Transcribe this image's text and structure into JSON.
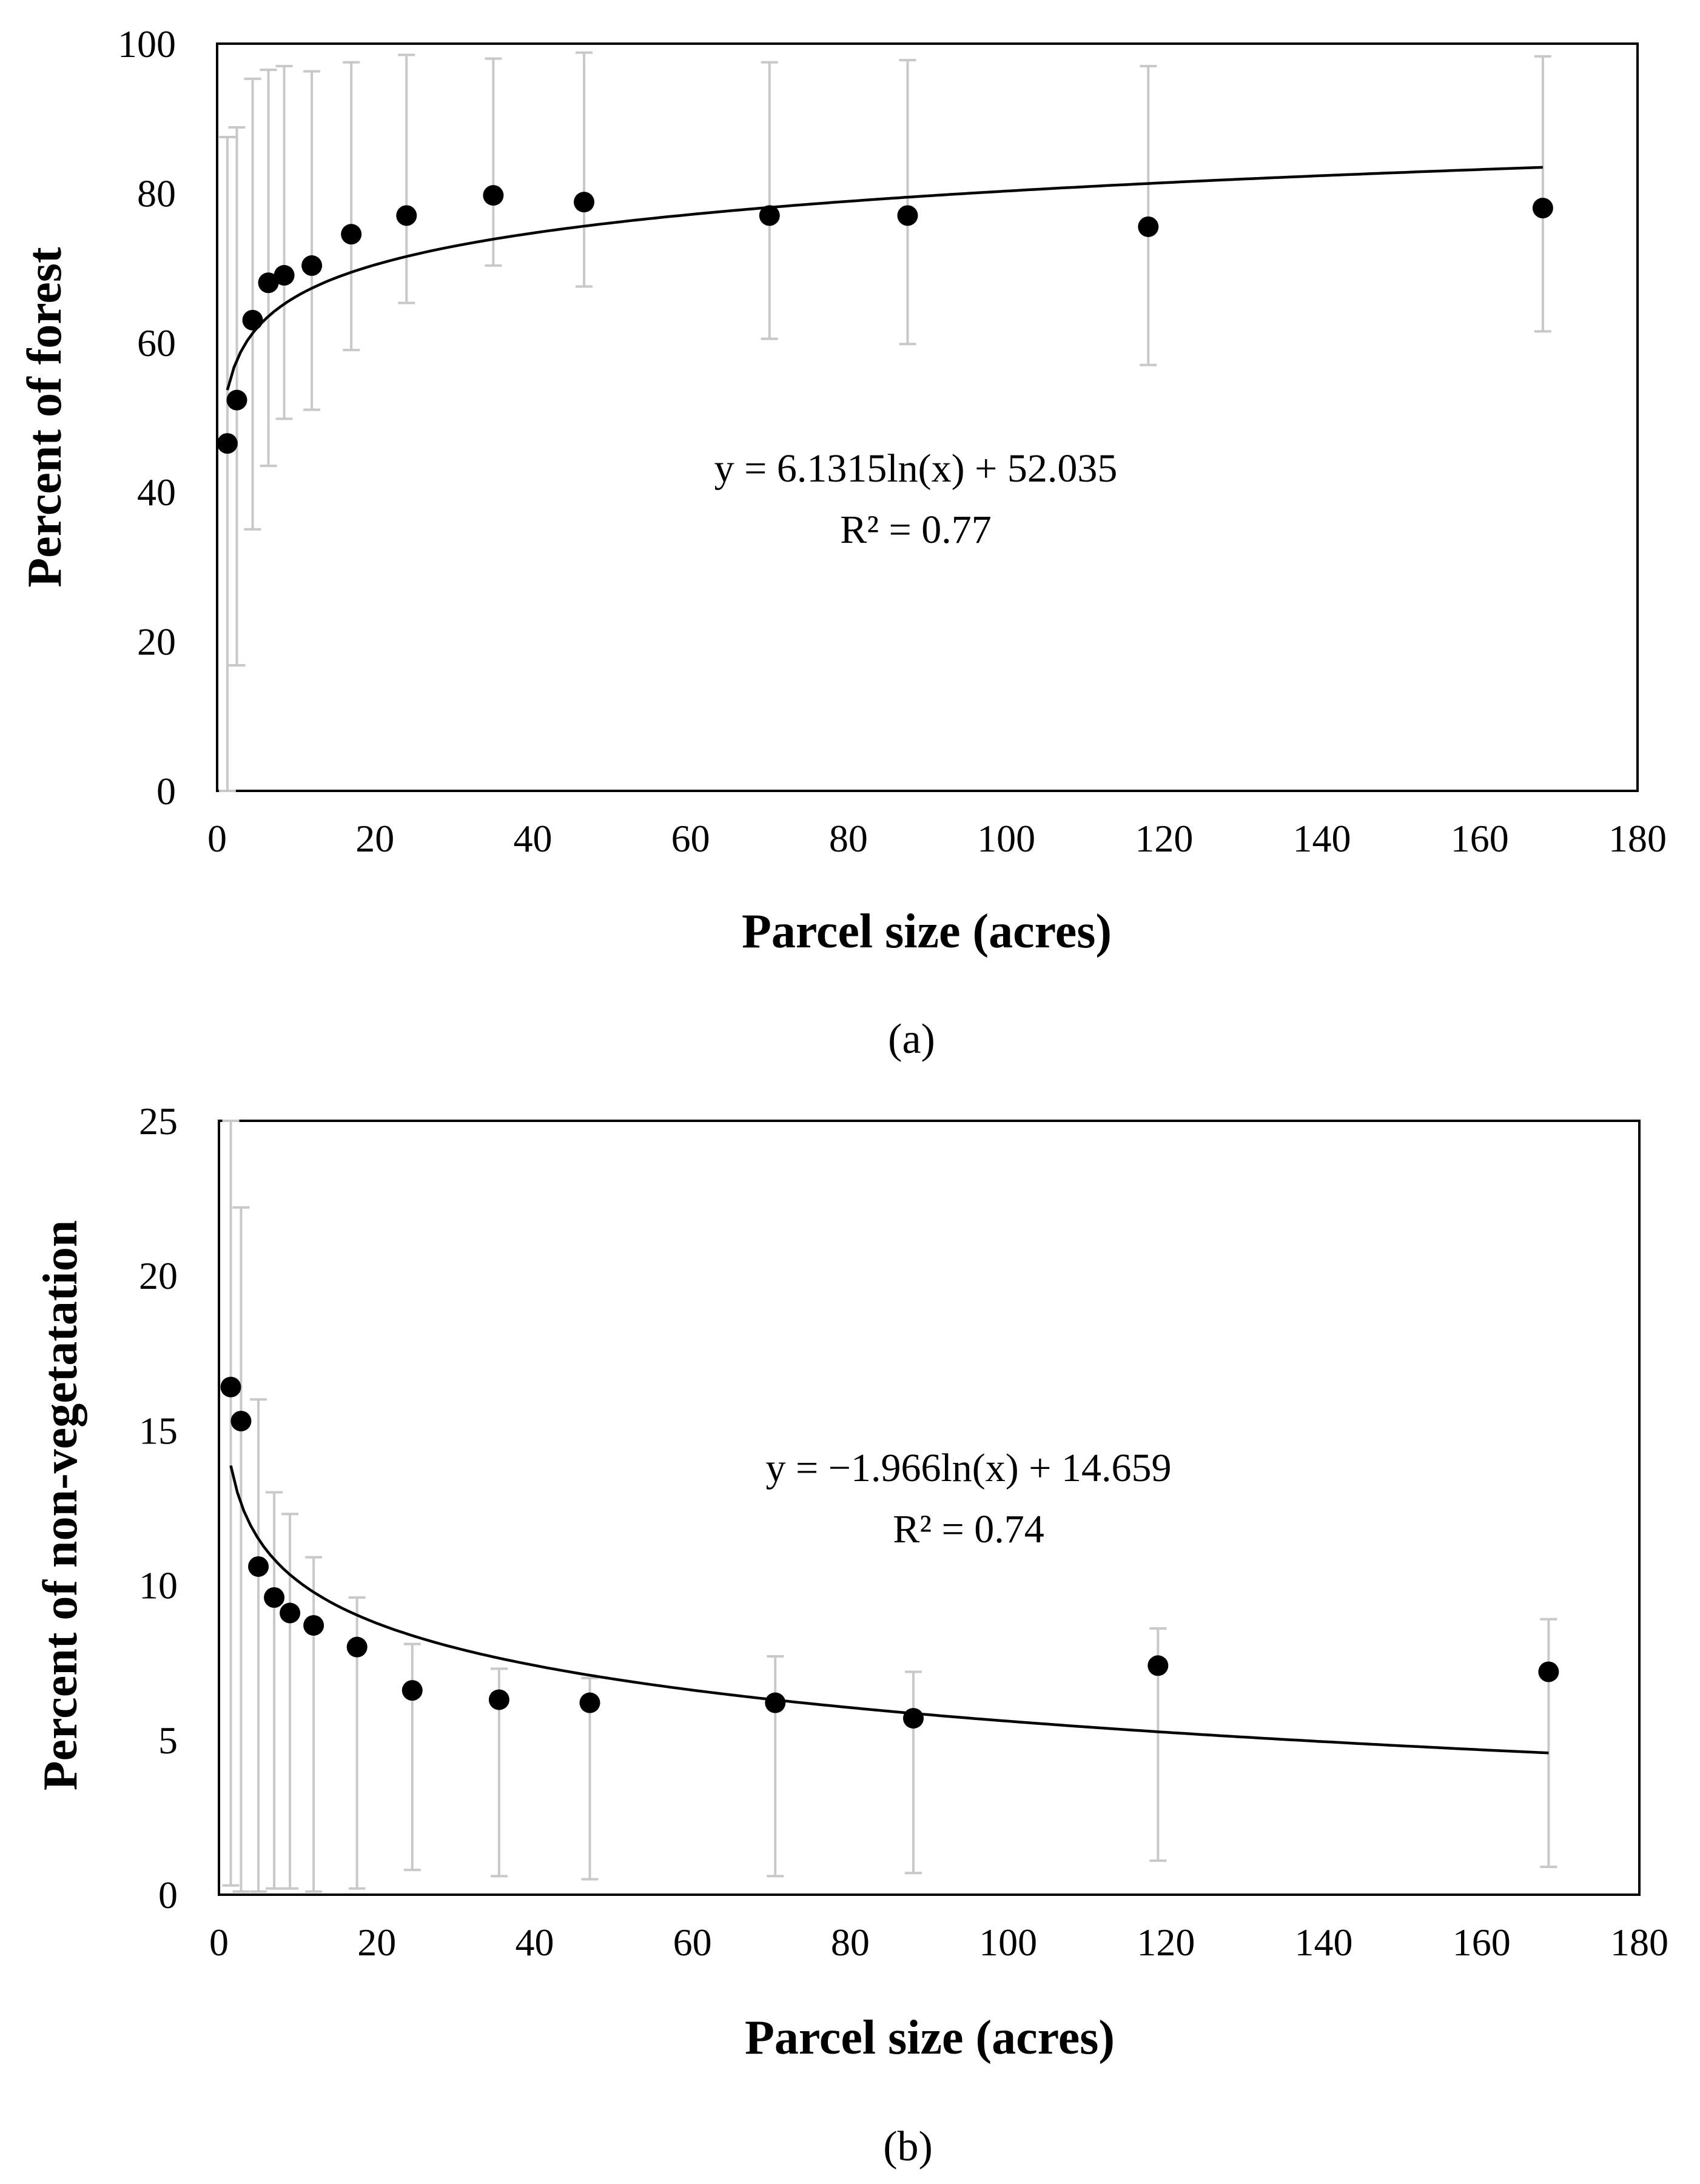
{
  "chart_data": [
    {
      "type": "scatter",
      "panel": "a",
      "caption": "(a)",
      "xlabel": "Parcel size (acres)",
      "ylabel": "Percent of forest",
      "xlim": [
        0,
        180
      ],
      "ylim": [
        0,
        100
      ],
      "xticks": [
        0,
        20,
        40,
        60,
        80,
        100,
        120,
        140,
        160,
        180
      ],
      "yticks": [
        0,
        20,
        40,
        60,
        80,
        100
      ],
      "points": [
        {
          "x": 1.3,
          "y": 46.5,
          "lo": 0,
          "hi": 87.5
        },
        {
          "x": 2.5,
          "y": 52.3,
          "lo": 16.8,
          "hi": 88.8
        },
        {
          "x": 4.5,
          "y": 63.0,
          "lo": 35.0,
          "hi": 95.3
        },
        {
          "x": 6.5,
          "y": 68.0,
          "lo": 43.5,
          "hi": 96.5
        },
        {
          "x": 8.5,
          "y": 69.0,
          "lo": 49.8,
          "hi": 97.0
        },
        {
          "x": 12.0,
          "y": 70.3,
          "lo": 51.0,
          "hi": 96.3
        },
        {
          "x": 17.0,
          "y": 74.5,
          "lo": 59.0,
          "hi": 97.5
        },
        {
          "x": 24.0,
          "y": 77.0,
          "lo": 65.3,
          "hi": 98.5
        },
        {
          "x": 35.0,
          "y": 79.7,
          "lo": 70.3,
          "hi": 98.0
        },
        {
          "x": 46.5,
          "y": 78.8,
          "lo": 67.5,
          "hi": 98.8
        },
        {
          "x": 70.0,
          "y": 77.0,
          "lo": 60.5,
          "hi": 97.5
        },
        {
          "x": 87.5,
          "y": 77.0,
          "lo": 59.8,
          "hi": 97.8
        },
        {
          "x": 118.0,
          "y": 75.5,
          "lo": 57.0,
          "hi": 97.0
        },
        {
          "x": 168.0,
          "y": 78.0,
          "lo": 61.5,
          "hi": 98.3
        }
      ],
      "trendline": {
        "type": "log",
        "a": 6.1315,
        "b": 52.035,
        "x_from": 1.3,
        "x_to": 168
      },
      "equation": "y = 6.1315ln(x) + 52.035",
      "r2": "R² = 0.77"
    },
    {
      "type": "scatter",
      "panel": "b",
      "caption": "(b)",
      "xlabel": "Parcel size (acres)",
      "ylabel": "Percent of non-vegetatation",
      "xlim": [
        0,
        180
      ],
      "ylim": [
        0,
        25
      ],
      "xticks": [
        0,
        20,
        40,
        60,
        80,
        100,
        120,
        140,
        160,
        180
      ],
      "yticks": [
        0,
        5,
        10,
        15,
        20,
        25
      ],
      "points": [
        {
          "x": 1.5,
          "y": 16.4,
          "lo": 0.3,
          "hi": 25.0
        },
        {
          "x": 2.8,
          "y": 15.3,
          "lo": 0.1,
          "hi": 22.2
        },
        {
          "x": 5.0,
          "y": 10.6,
          "lo": 0.1,
          "hi": 16.0
        },
        {
          "x": 7.0,
          "y": 9.6,
          "lo": 0.2,
          "hi": 13.0
        },
        {
          "x": 9.0,
          "y": 9.1,
          "lo": 0.2,
          "hi": 12.3
        },
        {
          "x": 12.0,
          "y": 8.7,
          "lo": 0.1,
          "hi": 10.9
        },
        {
          "x": 17.5,
          "y": 8.0,
          "lo": 0.2,
          "hi": 9.6
        },
        {
          "x": 24.5,
          "y": 6.6,
          "lo": 0.8,
          "hi": 8.1
        },
        {
          "x": 35.5,
          "y": 6.3,
          "lo": 0.6,
          "hi": 7.3
        },
        {
          "x": 47.0,
          "y": 6.2,
          "lo": 0.5,
          "hi": 7.0
        },
        {
          "x": 70.5,
          "y": 6.2,
          "lo": 0.6,
          "hi": 7.7
        },
        {
          "x": 88.0,
          "y": 5.7,
          "lo": 0.7,
          "hi": 7.2
        },
        {
          "x": 119.0,
          "y": 7.4,
          "lo": 1.1,
          "hi": 8.6
        },
        {
          "x": 168.5,
          "y": 7.2,
          "lo": 0.9,
          "hi": 8.9
        }
      ],
      "trendline": {
        "type": "log",
        "a": -1.966,
        "b": 14.659,
        "x_from": 1.5,
        "x_to": 168.5
      },
      "equation": "y = −1.966ln(x) + 14.659",
      "r2": "R² = 0.74"
    }
  ]
}
